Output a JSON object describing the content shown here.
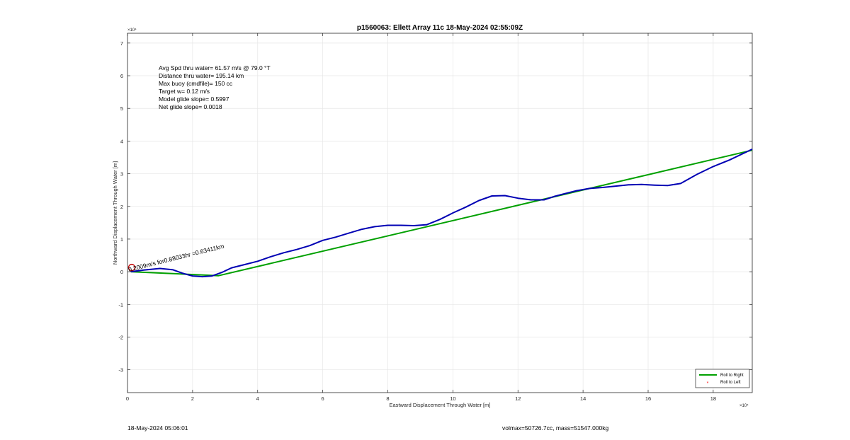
{
  "chart_data": {
    "type": "line",
    "title": "p1560063: Ellett Array 11c 18-May-2024 02:55:09Z",
    "xlabel": "Eastward Displacement Through Water [m]",
    "ylabel": "Northward Displacement Through Water [m]",
    "x_exponent": "×10⁴",
    "y_exponent": "×10⁴",
    "xlim": [
      0,
      19.2
    ],
    "ylim": [
      -3.7,
      7.3
    ],
    "grid": true,
    "x_ticks": [
      0,
      2,
      4,
      6,
      8,
      10,
      12,
      14,
      16,
      18
    ],
    "y_ticks": [
      -3,
      -2,
      -1,
      0,
      1,
      2,
      3,
      4,
      5,
      6,
      7
    ],
    "x_tick_labels": [
      "0",
      "2",
      "4",
      "6",
      "8",
      "10",
      "12",
      "14",
      "16",
      "18"
    ],
    "y_tick_labels": [
      "-3",
      "-2",
      "-1",
      "0",
      "1",
      "2",
      "3",
      "4",
      "5",
      "6",
      "7"
    ],
    "annotations": [
      "Avg Spd thru water= 61.57 m/s @  79.0 °T",
      "Distance thru water= 195.14 km",
      "Max buoy (cmdfile)= 150 cc",
      "Target w= 0.12 m/s",
      "Model glide slope= 0.5997",
      "Net glide slope= 0.0018"
    ],
    "current_label": "0.2009m/s for0.88033hr =0.63411km",
    "current_start": [
      0.13,
      0.13
    ],
    "series": [
      {
        "name": "Roll to Right",
        "color": "#00a000",
        "x": [
          0.1,
          2.8,
          19.2
        ],
        "y": [
          0.0,
          -0.12,
          3.72
        ]
      },
      {
        "name": "Roll to Left",
        "color": "#ff0000",
        "x": [],
        "y": []
      },
      {
        "name": "",
        "color": "#0000b4",
        "x": [
          0.1,
          0.5,
          1.0,
          1.4,
          1.7,
          2.0,
          2.3,
          2.6,
          2.9,
          3.2,
          3.6,
          4.0,
          4.4,
          4.8,
          5.2,
          5.6,
          6.0,
          6.4,
          6.8,
          7.2,
          7.6,
          8.0,
          8.4,
          8.8,
          9.2,
          9.6,
          10.0,
          10.4,
          10.8,
          11.2,
          11.6,
          12.0,
          12.4,
          12.8,
          13.1,
          13.4,
          13.8,
          14.2,
          14.6,
          15.0,
          15.4,
          15.8,
          16.2,
          16.6,
          17.0,
          17.5,
          18.0,
          18.5,
          19.2
        ],
        "y": [
          0.0,
          0.05,
          0.1,
          0.06,
          -0.05,
          -0.13,
          -0.15,
          -0.13,
          -0.02,
          0.12,
          0.22,
          0.32,
          0.46,
          0.58,
          0.68,
          0.8,
          0.96,
          1.06,
          1.18,
          1.3,
          1.38,
          1.42,
          1.42,
          1.41,
          1.44,
          1.6,
          1.8,
          1.98,
          2.18,
          2.32,
          2.33,
          2.25,
          2.2,
          2.2,
          2.3,
          2.38,
          2.48,
          2.55,
          2.58,
          2.62,
          2.66,
          2.67,
          2.65,
          2.64,
          2.7,
          2.98,
          3.22,
          3.42,
          3.75
        ]
      }
    ],
    "legend": {
      "position": "bottom-right",
      "entries": [
        "Roll to Right",
        "Roll to Left"
      ]
    }
  },
  "footer": {
    "timestamp": "18-May-2024 05:06:01",
    "volmax": "volmax=50726.7cc, mass=51547.000kg"
  }
}
